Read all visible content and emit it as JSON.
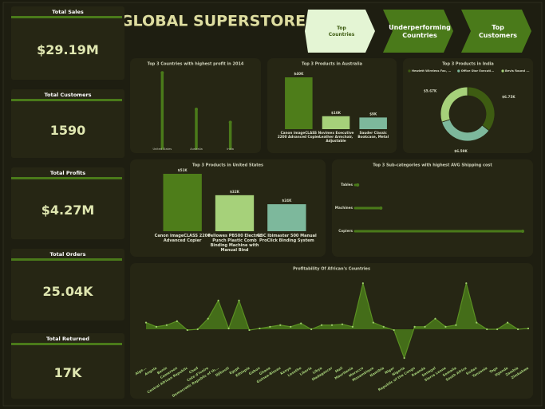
{
  "header": {
    "title": "GLOBAL SUPERSTORE"
  },
  "nav": [
    "Top Countries",
    "Underperforming Countries",
    "Top Customers"
  ],
  "kpis": [
    {
      "label": "Total Sales",
      "value": "$29.19M"
    },
    {
      "label": "Total Customers",
      "value": "1590"
    },
    {
      "label": "Total Profits",
      "value": "$4.27M"
    },
    {
      "label": "Total Orders",
      "value": "25.04K"
    },
    {
      "label": "Total Returned",
      "value": "17K"
    }
  ],
  "chart_data": [
    {
      "type": "lollipop",
      "title": "Top 3 Countries with highest profit in 2014",
      "categories": [
        "United States",
        "Australia",
        "India"
      ],
      "values": [
        29,
        15,
        10
      ],
      "ylim": [
        0,
        30
      ],
      "color": "#4a7a1a"
    },
    {
      "type": "bar",
      "title": "Top 3 Products in Australia",
      "categories": [
        "Canon imageCLASS 2200 Advanced Copier",
        "Novimex Executive Leather Armchair, Adjustable",
        "Sauder Classic Bookcase, Metal"
      ],
      "values": [
        40,
        10,
        9
      ],
      "value_labels": [
        "$40K",
        "$10K",
        "$9K"
      ],
      "ylim": [
        0,
        40
      ],
      "colors": [
        "#4e7d1a",
        "#a6d17a",
        "#7db89c"
      ]
    },
    {
      "type": "pie",
      "title": "Top 3 Products in India",
      "donut": true,
      "legend": "top",
      "categories": [
        "Hewlett Wireless Fax, ...",
        "Office Star Executi...",
        "Bevis Round ..."
      ],
      "values": [
        6.75,
        6.59,
        5.67
      ],
      "value_labels": [
        "$6.75K",
        "$6.59K",
        "$5.67K"
      ],
      "colors": [
        "#3e5c12",
        "#7db89c",
        "#a6d17a"
      ]
    },
    {
      "type": "bar",
      "title": "Top 3 Products in United States",
      "categories": [
        "Canon imageCLASS 2200 Advanced Copier",
        "Fellowes PB500 Electric Punch Plastic Comb Binding Machine with Manual Bind",
        "GBC Ibimaster 500 Manual ProClick Binding System"
      ],
      "values": [
        51,
        32,
        24
      ],
      "value_labels": [
        "$51K",
        "$32K",
        "$24K"
      ],
      "ylim": [
        0,
        51
      ],
      "colors": [
        "#4e7d1a",
        "#a6d17a",
        "#7db89c"
      ]
    },
    {
      "type": "lollipop",
      "orientation": "horizontal",
      "title": "Top 3 Sub-categories with highest AVG Shipping cost",
      "categories": [
        "Tables",
        "Machines",
        "Copiers"
      ],
      "values": [
        2,
        20,
        130
      ],
      "xlim": [
        0,
        130
      ],
      "color": "#4a7a1a"
    },
    {
      "type": "area",
      "title": "Profitability Of African's Countries",
      "categories": [
        "Alge...",
        "Angola",
        "Benin",
        "Cameroon",
        "Central African Republic",
        "Chad",
        "Cote d'Ivoire",
        "Democratic Republic of th...",
        "Djibouti",
        "Egypt",
        "Ethiopia",
        "Gabon",
        "Ghana",
        "Guinea-Bissau",
        "Kenya",
        "Lesotho",
        "Liberia",
        "Libya",
        "Madagascar",
        "Mali",
        "Mauritania",
        "Morocco",
        "Mozambique",
        "Namibia",
        "Niger",
        "Nigeria",
        "Republic of the Congo",
        "Rwanda",
        "Senegal",
        "Sierra Leone",
        "Somalia",
        "South Africa",
        "Sudan",
        "Tanzania",
        "Togo",
        "Uganda",
        "Zambia",
        "Zimbabwe"
      ],
      "values": [
        2.4,
        0.9,
        1.5,
        2.9,
        -0.3,
        0,
        3.8,
        10.3,
        0.3,
        10.3,
        -0.3,
        0.3,
        0.9,
        1.5,
        0.9,
        2.1,
        0,
        1.5,
        1.5,
        1.8,
        0.9,
        16.5,
        2.4,
        0.9,
        -0.3,
        -10.3,
        0.9,
        0.9,
        3.8,
        0.9,
        1.5,
        16.5,
        2.4,
        0,
        0,
        2.4,
        0,
        0.3
      ],
      "ylim": [
        -12,
        18
      ],
      "color": "#4a7a1a"
    }
  ]
}
